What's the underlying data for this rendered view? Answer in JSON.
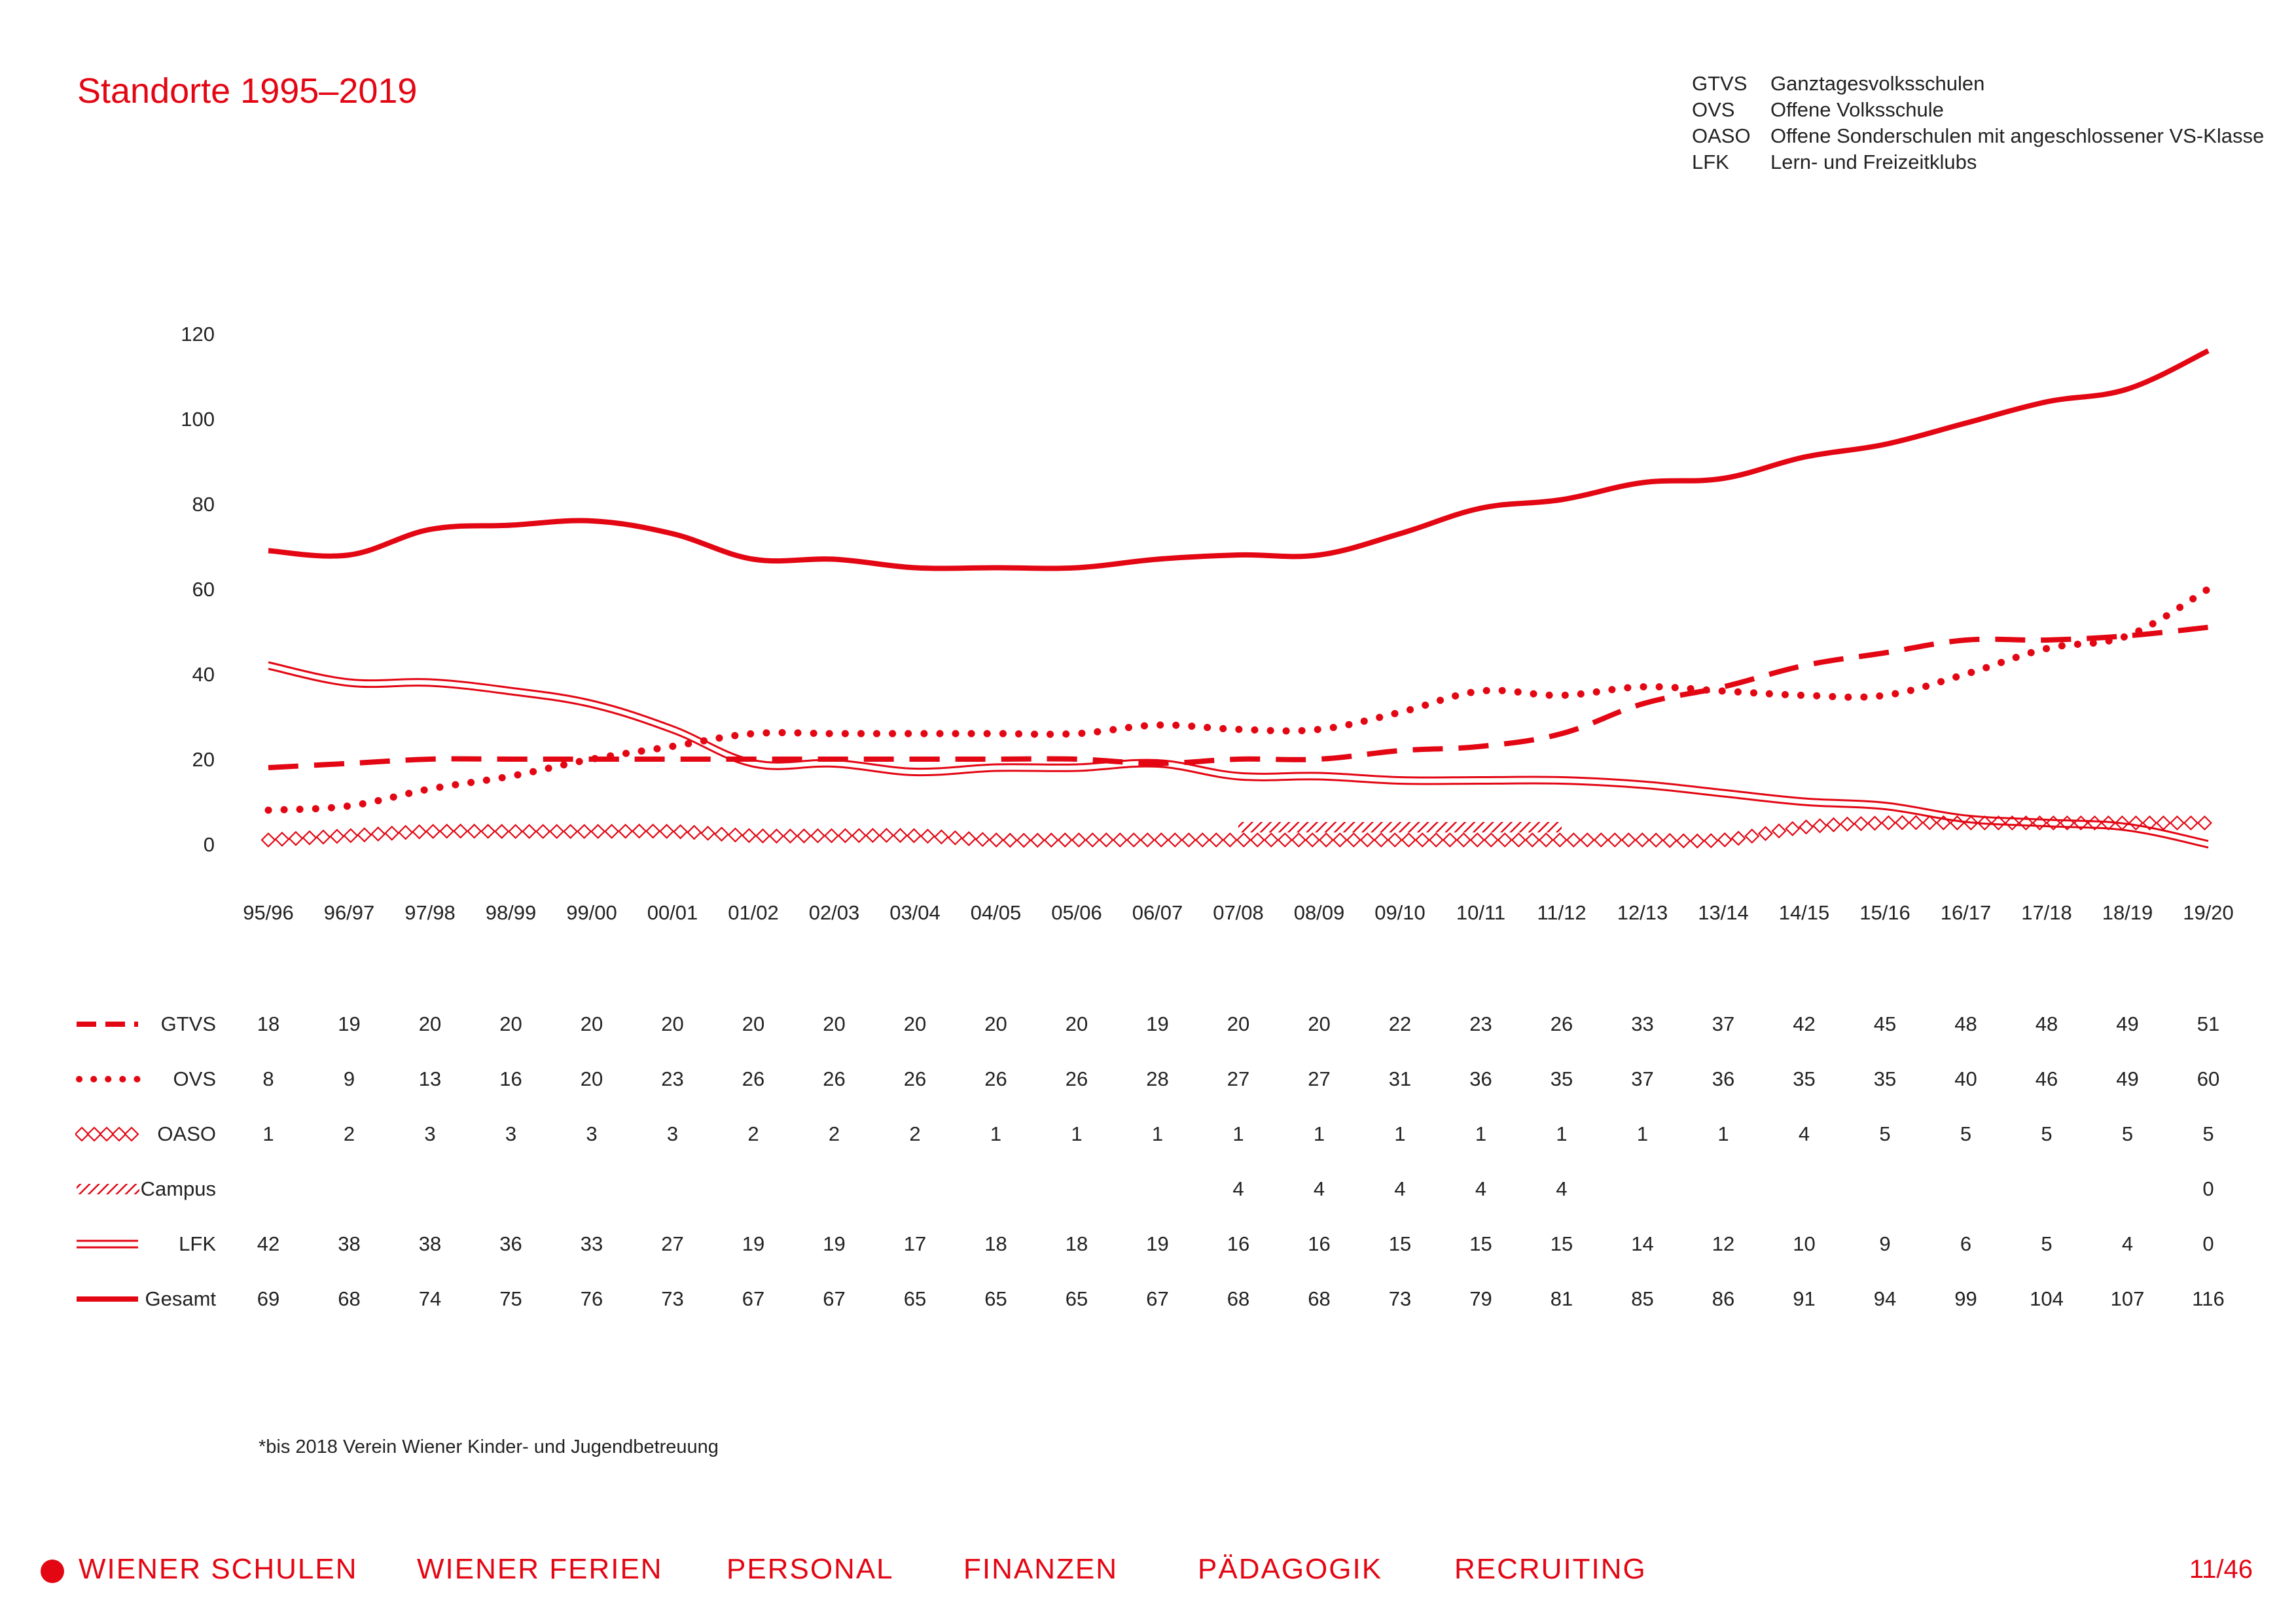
{
  "title": "Standorte 1995–2019",
  "abbreviations": [
    {
      "key": "GTVS",
      "text": "Ganztagesvolksschulen"
    },
    {
      "key": "OVS",
      "text": "Offene Volksschule"
    },
    {
      "key": "OASO",
      "text": "Offene Sonderschulen mit angeschlossener VS-Klasse"
    },
    {
      "key": "LFK",
      "text": "Lern- und Freizeitklubs"
    }
  ],
  "footnote": "*bis 2018 Verein Wiener Kinder- und Jugendbetreuung",
  "nav": {
    "items": [
      "WIENER SCHULEN",
      "WIENER FERIEN",
      "PERSONAL",
      "FINANZEN",
      "PÄDAGOGIK",
      "RECRUITING"
    ],
    "page": "11/46"
  },
  "colors": {
    "accent": "#e30613",
    "text": "#222222"
  },
  "chart_data": {
    "type": "line",
    "title": "Standorte 1995–2019",
    "categories": [
      "95/96",
      "96/97",
      "97/98",
      "98/99",
      "99/00",
      "00/01",
      "01/02",
      "02/03",
      "03/04",
      "04/05",
      "05/06",
      "06/07",
      "07/08",
      "08/09",
      "09/10",
      "10/11",
      "11/12",
      "12/13",
      "13/14",
      "14/15",
      "15/16",
      "16/17",
      "17/18",
      "18/19",
      "19/20"
    ],
    "y_ticks": [
      0,
      20,
      40,
      60,
      80,
      100,
      120
    ],
    "ylim": [
      0,
      120
    ],
    "grid": false,
    "series": [
      {
        "name": "GTVS",
        "style": "dashed",
        "values": [
          18,
          19,
          20,
          20,
          20,
          20,
          20,
          20,
          20,
          20,
          20,
          19,
          20,
          20,
          22,
          23,
          26,
          33,
          37,
          42,
          45,
          48,
          48,
          49,
          51
        ]
      },
      {
        "name": "OVS",
        "style": "dotted",
        "values": [
          8,
          9,
          13,
          16,
          20,
          23,
          26,
          26,
          26,
          26,
          26,
          28,
          27,
          27,
          31,
          36,
          35,
          37,
          36,
          35,
          35,
          40,
          46,
          49,
          60
        ]
      },
      {
        "name": "OASO",
        "style": "diamonds",
        "values": [
          1,
          2,
          3,
          3,
          3,
          3,
          2,
          2,
          2,
          1,
          1,
          1,
          1,
          1,
          1,
          1,
          1,
          1,
          1,
          4,
          5,
          5,
          5,
          5,
          5
        ]
      },
      {
        "name": "Campus",
        "style": "hatched",
        "values": [
          null,
          null,
          null,
          null,
          null,
          null,
          null,
          null,
          null,
          null,
          null,
          null,
          4,
          4,
          4,
          4,
          4,
          null,
          null,
          null,
          null,
          null,
          null,
          null,
          0
        ]
      },
      {
        "name": "LFK",
        "style": "double",
        "values": [
          42,
          38,
          38,
          36,
          33,
          27,
          19,
          19,
          17,
          18,
          18,
          19,
          16,
          16,
          15,
          15,
          15,
          14,
          12,
          10,
          9,
          6,
          5,
          4,
          0
        ]
      },
      {
        "name": "Gesamt",
        "style": "solid",
        "values": [
          69,
          68,
          74,
          75,
          76,
          73,
          67,
          67,
          65,
          65,
          65,
          67,
          68,
          68,
          73,
          79,
          81,
          85,
          86,
          91,
          94,
          99,
          104,
          107,
          116
        ]
      }
    ]
  }
}
